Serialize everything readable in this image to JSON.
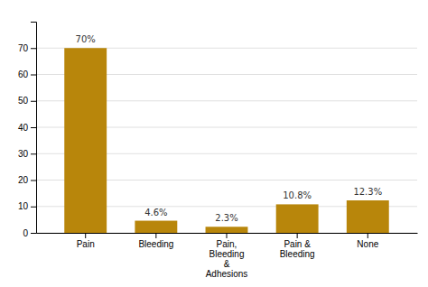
{
  "chart_data": {
    "type": "bar",
    "categories": [
      "Pain",
      "Bleeding",
      "Pain,\nBleeding\n&\nAdhesions",
      "Pain &\nBleeding",
      "None"
    ],
    "values": [
      70,
      4.6,
      2.3,
      10.8,
      12.3
    ],
    "value_labels": [
      "70%",
      "4.6%",
      "2.3%",
      "10.8%",
      "12.3%"
    ],
    "color": "#B8860B",
    "ylim": [
      0,
      80
    ],
    "yticks": [
      0,
      10,
      20,
      30,
      40,
      50,
      60,
      70
    ],
    "grid": true,
    "data_labels": true
  }
}
